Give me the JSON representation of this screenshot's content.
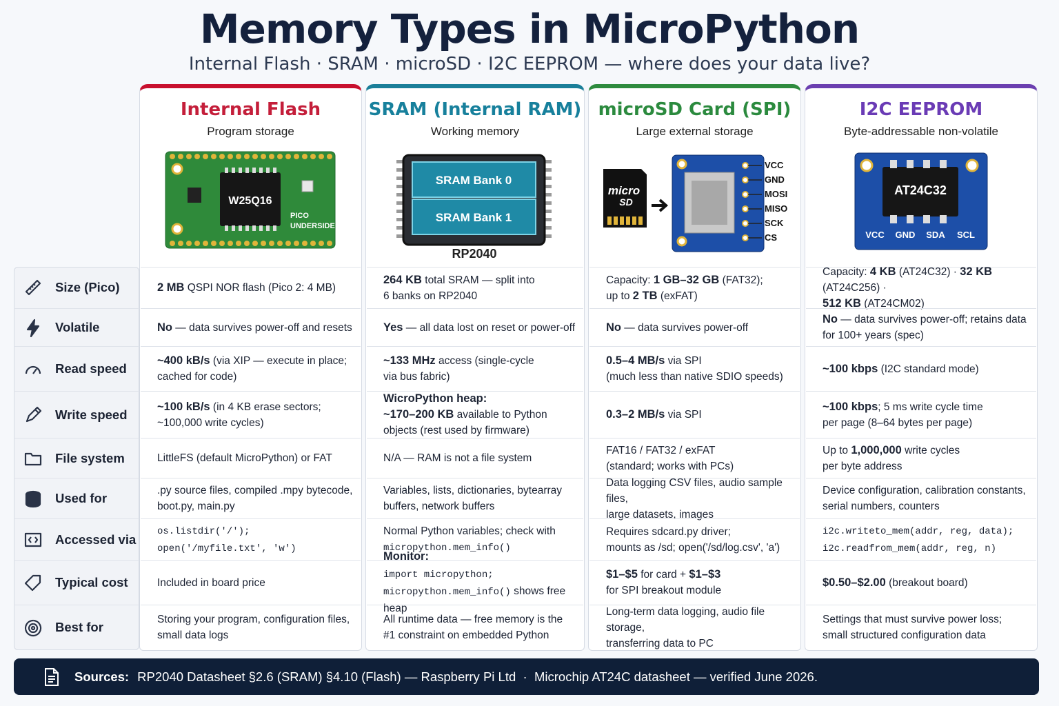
{
  "header": {
    "title": "Memory Types in MicroPython",
    "subtitle": "Internal Flash · SRAM · microSD · I2C EEPROM — where does your data live?"
  },
  "columns": [
    {
      "title": "Internal Flash",
      "subtitle": "Program storage",
      "figure": {
        "chip": "W25Q16",
        "note": "PICO\nUNDERSIDE"
      }
    },
    {
      "title": "SRAM (Internal RAM)",
      "subtitle": "Working memory",
      "figure": {
        "banks": [
          "SRAM Bank 0",
          "SRAM Bank 1"
        ],
        "chip": "RP2040"
      }
    },
    {
      "title": "microSD Card (SPI)",
      "subtitle": "Large external storage",
      "figure": {
        "card": [
          "micro",
          "SD"
        ],
        "pins": [
          "VCC",
          "GND",
          "MOSI",
          "MISO",
          "SCK",
          "CS"
        ]
      }
    },
    {
      "title": "I2C EEPROM",
      "subtitle": "Byte-addressable non-volatile",
      "figure": {
        "chip": "AT24C32",
        "pins": [
          "VCC",
          "GND",
          "SDA",
          "SCL"
        ]
      }
    }
  ],
  "rows": [
    {
      "label": "Size (Pico)",
      "cells": [
        [
          {
            "bold": "2 MB"
          },
          " QSPI NOR flash (Pico 2: 4 MB)"
        ],
        [
          {
            "bold": "264 KB"
          },
          " total SRAM — split into\n6 banks on RP2040"
        ],
        [
          "Capacity: ",
          {
            "bold": "1 GB–32 GB"
          },
          " (FAT32);\nup to ",
          {
            "bold": "2 TB"
          },
          " (exFAT)"
        ],
        [
          "Capacity: ",
          {
            "bold": "4 KB"
          },
          " (AT24C32) · ",
          {
            "bold": "32 KB"
          },
          " (AT24C256) ·\n",
          {
            "bold": "512 KB"
          },
          " (AT24CM02)"
        ]
      ]
    },
    {
      "label": "Volatile",
      "cells": [
        [
          {
            "bold": "No"
          },
          " — data survives power-off and resets"
        ],
        [
          {
            "bold": "Yes"
          },
          " — all data lost on reset or power-off"
        ],
        [
          {
            "bold": "No"
          },
          " — data survives power-off"
        ],
        [
          {
            "bold": "No"
          },
          " — data survives power-off; retains data\nfor 100+ years (spec)"
        ]
      ]
    },
    {
      "label": "Read speed",
      "cells": [
        [
          {
            "bold": "~400 kB/s"
          },
          " (via XIP — execute in place;\ncached for code)"
        ],
        [
          {
            "bold": "~133 MHz"
          },
          " access (single-cycle\nvia bus fabric)"
        ],
        [
          {
            "bold": "0.5–4 MB/s"
          },
          " via SPI\n(much less than native SDIO speeds)"
        ],
        [
          {
            "bold": "~100 kbps"
          },
          " (I2C standard mode)"
        ]
      ]
    },
    {
      "label": "Write speed",
      "cells": [
        [
          {
            "bold": "~100 kB/s"
          },
          " (in 4 KB erase sectors;\n~100,000 write cycles)"
        ],
        [
          {
            "bold": "WicroPython heap:\n~170–200 KB"
          },
          " available to Python\nobjects (rest used by firmware)"
        ],
        [
          {
            "bold": "0.3–2 MB/s"
          },
          " via SPI"
        ],
        [
          {
            "bold": "~100 kbps"
          },
          "; 5 ms write cycle time\nper page (8–64 bytes per page)"
        ]
      ]
    },
    {
      "label": "File system",
      "cells": [
        [
          "LittleFS (default MicroPython) or FAT"
        ],
        [
          "N/A — RAM is not a file system"
        ],
        [
          "FAT16 / FAT32 / exFAT\n(standard; works with PCs)"
        ],
        [
          "Up to ",
          {
            "bold": "1,000,000"
          },
          " write cycles\nper byte address"
        ]
      ]
    },
    {
      "label": "Used for",
      "cells": [
        [
          ".py source files, compiled .mpy bytecode,\nboot.py, main.py"
        ],
        [
          "Variables, lists, dictionaries, bytearray\nbuffers, network buffers"
        ],
        [
          "Data logging CSV files, audio sample files,\nlarge datasets, images"
        ],
        [
          "Device configuration, calibration constants,\nserial numbers, counters"
        ]
      ]
    },
    {
      "label": "Accessed via",
      "cells": [
        [
          {
            "code": "os.listdir('/'); open('/myfile.txt', 'w')"
          }
        ],
        [
          "Normal Python variables; check with\n",
          {
            "code": "micropython.mem_info()"
          }
        ],
        [
          "Requires sdcard.py driver;\nmounts as /sd; open('/sd/log.csv', 'a')"
        ],
        [
          {
            "code": "i2c.writeto_mem(addr, reg, data);\ni2c.readfrom_mem(addr, reg, n)"
          }
        ]
      ]
    },
    {
      "label": "Typical cost",
      "cells": [
        [
          "Included in board price"
        ],
        [
          {
            "bold": "Monitor:"
          },
          {
            "code": "\nimport micropython;\nmicropython.mem_info()"
          },
          " shows free heap"
        ],
        [
          {
            "bold": "$1–$5"
          },
          " for card + ",
          {
            "bold": "$1–$3"
          },
          "\nfor SPI breakout module"
        ],
        [
          {
            "bold": "$0.50–$2.00"
          },
          " (breakout board)"
        ]
      ]
    },
    {
      "label": "Best for",
      "cells": [
        [
          "Storing your program, configuration files,\nsmall data logs"
        ],
        [
          "All runtime data — free memory is the\n#1 constraint on embedded Python"
        ],
        [
          "Long-term data logging, audio file storage,\ntransferring data to PC"
        ],
        [
          "Settings that must survive power loss;\nsmall structured configuration data"
        ]
      ]
    }
  ],
  "footer": {
    "label": "Sources:",
    "text": "RP2040 Datasheet §2.6 (SRAM) §4.10 (Flash) — Raspberry Pi Ltd  ·  Microchip AT24C datasheet — verified June 2026."
  }
}
